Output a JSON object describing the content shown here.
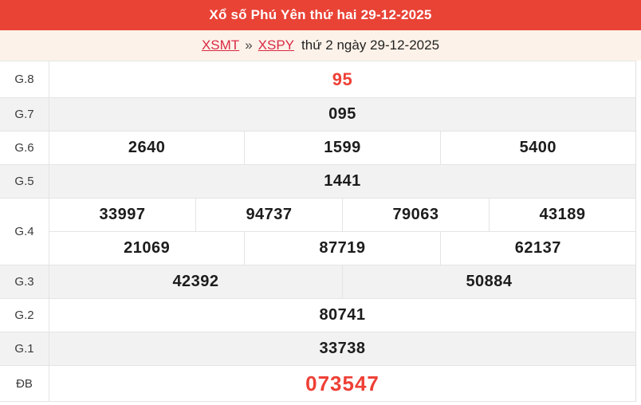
{
  "header": {
    "title": "Xổ số Phú Yên thứ hai 29-12-2025"
  },
  "breadcrumb": {
    "xsmt_link": "XSMT",
    "separator": "»",
    "xspy_link": "XSPY",
    "date_text": "thứ 2 ngày 29-12-2025"
  },
  "colors": {
    "header_bg": "#e94336",
    "subheader_bg": "#fdf2e9",
    "link_red": "#d92a45",
    "highlight_red": "#ee4036",
    "row_alt_bg": "#f2f2f2",
    "border": "#e4e4e4"
  },
  "results": {
    "g8": {
      "label": "G.8",
      "values": [
        "95"
      ]
    },
    "g7": {
      "label": "G.7",
      "values": [
        "095"
      ]
    },
    "g6": {
      "label": "G.6",
      "values": [
        "2640",
        "1599",
        "5400"
      ]
    },
    "g5": {
      "label": "G.5",
      "values": [
        "1441"
      ]
    },
    "g4": {
      "label": "G.4",
      "row1": [
        "33997",
        "94737",
        "79063",
        "43189"
      ],
      "row2": [
        "21069",
        "87719",
        "62137"
      ]
    },
    "g3": {
      "label": "G.3",
      "values": [
        "42392",
        "50884"
      ]
    },
    "g2": {
      "label": "G.2",
      "values": [
        "80741"
      ]
    },
    "g1": {
      "label": "G.1",
      "values": [
        "33738"
      ]
    },
    "special": {
      "label": "ĐB",
      "values": [
        "073547"
      ]
    }
  }
}
